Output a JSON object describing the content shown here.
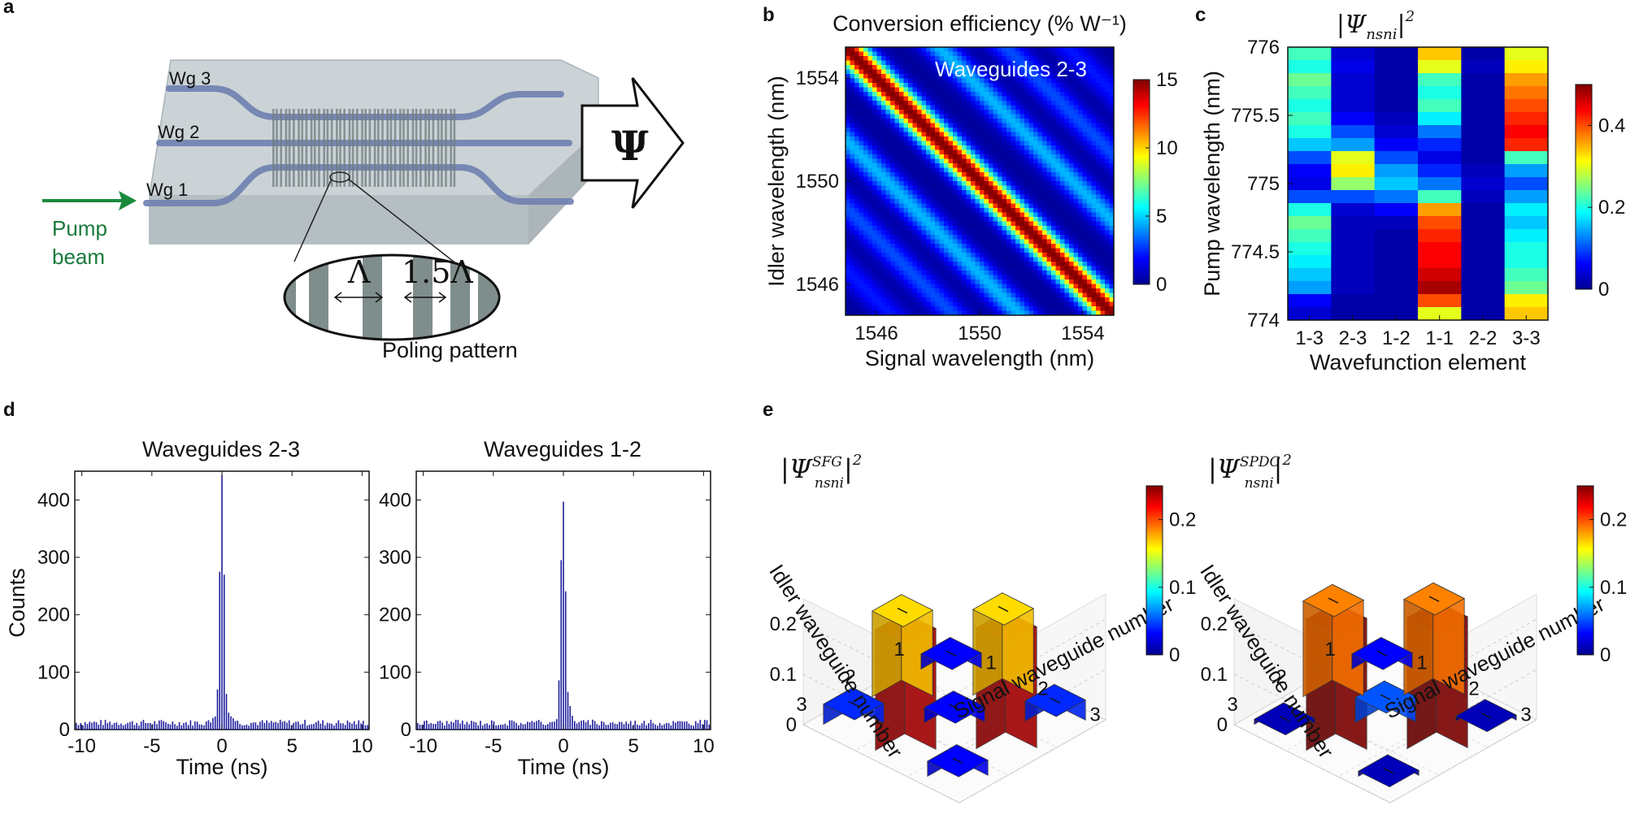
{
  "colors": {
    "jet_low": "#00008f",
    "jet_high": "#800000",
    "pump_arrow": "#1a8a3c",
    "waveguide": "#6f7fb0",
    "chip": "#c6d0d4",
    "histogram": "#1f1f9c"
  },
  "panels": {
    "a": "a",
    "b": "b",
    "c": "c",
    "d": "d",
    "e": "e"
  },
  "panel_a": {
    "wg1": "Wg 1",
    "wg2": "Wg 2",
    "wg3": "Wg 3",
    "pump_line1": "Pump",
    "pump_line2": "beam",
    "psi": "Ψ",
    "lambda": "Λ",
    "lambda15": "1.5Λ",
    "poling_label": "Poling pattern"
  },
  "chart_data": [
    {
      "id": "b",
      "type": "heatmap",
      "title": "Conversion efficiency (% W⁻¹)",
      "annotation": "Waveguides 2-3",
      "xlabel": "Signal wavelength (nm)",
      "ylabel": "Idler wavelength (nm)",
      "xlim": [
        1544.8,
        1555.2
      ],
      "ylim": [
        1544.8,
        1555.2
      ],
      "xticks": [
        1546,
        1550,
        1554
      ],
      "yticks": [
        1546,
        1550,
        1554
      ],
      "colorbar": {
        "min": 0,
        "max": 15,
        "ticks": [
          0,
          5,
          10,
          15
        ]
      },
      "description_values": {
        "main_diagonal_peak": 15,
        "side_lobe_peak": 4
      }
    },
    {
      "id": "c",
      "type": "heatmap",
      "title": "|Ψ_{n_s n_i}|²",
      "xlabel": "Wavefunction element",
      "ylabel": "Pump wavelength (nm)",
      "categories": [
        "1-3",
        "2-3",
        "1-2",
        "1-1",
        "2-2",
        "3-3"
      ],
      "ylim": [
        774,
        776
      ],
      "yticks": [
        774,
        774.5,
        775,
        775.5,
        776
      ],
      "ytick_labels": [
        "774",
        "774.5",
        "775",
        "775.5",
        "776"
      ],
      "colorbar": {
        "min": 0,
        "max": 0.5,
        "ticks": [
          0,
          0.2,
          0.4
        ]
      },
      "pump_wavelengths": [
        776.0,
        775.9,
        775.8,
        775.7,
        775.6,
        775.5,
        775.4,
        775.3,
        775.2,
        775.1,
        775.0,
        774.9,
        774.8,
        774.7,
        774.6,
        774.5,
        774.4,
        774.3,
        774.2,
        774.1,
        774.0
      ],
      "values": [
        [
          0.22,
          0.04,
          0.02,
          0.34,
          0.02,
          0.3
        ],
        [
          0.2,
          0.05,
          0.02,
          0.3,
          0.03,
          0.32
        ],
        [
          0.24,
          0.04,
          0.02,
          0.22,
          0.02,
          0.36
        ],
        [
          0.22,
          0.04,
          0.02,
          0.2,
          0.02,
          0.38
        ],
        [
          0.2,
          0.04,
          0.02,
          0.22,
          0.02,
          0.4
        ],
        [
          0.22,
          0.06,
          0.03,
          0.18,
          0.02,
          0.42
        ],
        [
          0.2,
          0.1,
          0.04,
          0.12,
          0.02,
          0.44
        ],
        [
          0.16,
          0.14,
          0.06,
          0.08,
          0.02,
          0.42
        ],
        [
          0.1,
          0.3,
          0.1,
          0.05,
          0.02,
          0.22
        ],
        [
          0.06,
          0.32,
          0.14,
          0.08,
          0.03,
          0.14
        ],
        [
          0.05,
          0.26,
          0.16,
          0.12,
          0.04,
          0.1
        ],
        [
          0.1,
          0.1,
          0.12,
          0.22,
          0.03,
          0.14
        ],
        [
          0.2,
          0.04,
          0.06,
          0.36,
          0.02,
          0.18
        ],
        [
          0.24,
          0.03,
          0.03,
          0.4,
          0.02,
          0.16
        ],
        [
          0.22,
          0.03,
          0.02,
          0.42,
          0.02,
          0.18
        ],
        [
          0.2,
          0.03,
          0.02,
          0.44,
          0.02,
          0.2
        ],
        [
          0.18,
          0.03,
          0.02,
          0.44,
          0.02,
          0.2
        ],
        [
          0.16,
          0.03,
          0.02,
          0.46,
          0.02,
          0.22
        ],
        [
          0.14,
          0.03,
          0.02,
          0.48,
          0.02,
          0.24
        ],
        [
          0.06,
          0.02,
          0.02,
          0.4,
          0.02,
          0.32
        ],
        [
          0.04,
          0.02,
          0.02,
          0.3,
          0.02,
          0.34
        ]
      ]
    },
    {
      "id": "d1",
      "type": "bar",
      "title": "Waveguides 2-3",
      "xlabel": "Time (ns)",
      "ylabel": "Counts",
      "xlim": [
        -10.5,
        10.5
      ],
      "ylim": [
        0,
        450
      ],
      "xticks": [
        -10,
        -5,
        0,
        5,
        10
      ],
      "yticks": [
        0,
        100,
        200,
        300,
        400
      ],
      "peak_time": 0,
      "peak_counts": 443,
      "background_counts": 12
    },
    {
      "id": "d2",
      "type": "bar",
      "title": "Waveguides 1-2",
      "xlabel": "Time (ns)",
      "ylabel": "",
      "xlim": [
        -10.5,
        10.5
      ],
      "ylim": [
        0,
        450
      ],
      "xticks": [
        -10,
        -5,
        0,
        5,
        10
      ],
      "yticks": [
        0,
        100,
        200,
        300,
        400
      ],
      "peak_time": 0,
      "peak_counts": 397,
      "background_counts": 12
    },
    {
      "id": "e1",
      "type": "bar3d",
      "title": "|Ψ^{SFG}_{n_s n_i}|²",
      "xlabel": "Signal waveguide number",
      "ylabel": "Idler waveguide number",
      "zlim": [
        0,
        0.25
      ],
      "zticks": [
        0,
        0.1,
        0.2
      ],
      "axis_ticks": [
        1,
        2,
        3
      ],
      "colorbar": {
        "min": 0,
        "max": 0.25,
        "ticks": [
          0,
          0.1,
          0.2
        ]
      },
      "values": [
        [
          0.03,
          0.17,
          0.04
        ],
        [
          0.17,
          0.03,
          0.24
        ],
        [
          0.04,
          0.24,
          0.03
        ]
      ]
    },
    {
      "id": "e2",
      "type": "bar3d",
      "title": "|Ψ^{SPDC}_{n_s n_i}|²",
      "xlabel": "Signal waveguide number",
      "ylabel": "Idler waveguide number",
      "zlim": [
        0,
        0.25
      ],
      "zticks": [
        0,
        0.1,
        0.2
      ],
      "axis_ticks": [
        1,
        2,
        3
      ],
      "colorbar": {
        "min": 0,
        "max": 0.25,
        "ticks": [
          0,
          0.1,
          0.2
        ]
      },
      "values": [
        [
          0.03,
          0.19,
          0.01
        ],
        [
          0.19,
          0.05,
          0.26
        ],
        [
          0.01,
          0.26,
          0.01
        ]
      ]
    }
  ]
}
